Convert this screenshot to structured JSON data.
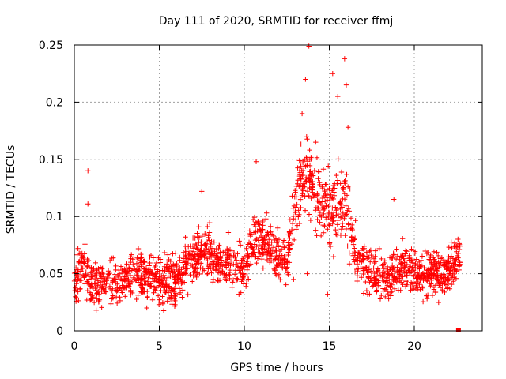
{
  "chart_data": {
    "type": "scatter",
    "title": "Day 111 of 2020, SRMTID for receiver ffmj",
    "xlabel": "GPS time / hours",
    "ylabel": "SRMTID / TECUs",
    "xlim": [
      0,
      24
    ],
    "ylim": [
      0,
      0.25
    ],
    "x_ticks": [
      0,
      5,
      10,
      15,
      20
    ],
    "x_tick_labels": [
      "0",
      "5",
      "10",
      "15",
      "20"
    ],
    "y_ticks": [
      0,
      0.05,
      0.1,
      0.15,
      0.2,
      0.25
    ],
    "y_tick_labels": [
      "0",
      "0.05",
      "0.1",
      "0.15",
      "0.2",
      "0.25"
    ],
    "grid": true,
    "grid_style": "dotted",
    "legend": "none",
    "marker": "plus",
    "color": "#ff0000",
    "trend": [
      [
        0.0,
        0.045
      ],
      [
        0.5,
        0.055
      ],
      [
        1.0,
        0.04
      ],
      [
        2.0,
        0.042
      ],
      [
        3.0,
        0.045
      ],
      [
        4.0,
        0.047
      ],
      [
        5.0,
        0.043
      ],
      [
        6.0,
        0.046
      ],
      [
        6.5,
        0.052
      ],
      [
        7.0,
        0.065
      ],
      [
        7.5,
        0.07
      ],
      [
        8.0,
        0.068
      ],
      [
        8.5,
        0.058
      ],
      [
        9.0,
        0.062
      ],
      [
        9.5,
        0.055
      ],
      [
        10.0,
        0.052
      ],
      [
        10.5,
        0.075
      ],
      [
        11.0,
        0.08
      ],
      [
        11.5,
        0.072
      ],
      [
        12.0,
        0.065
      ],
      [
        12.5,
        0.06
      ],
      [
        13.0,
        0.11
      ],
      [
        13.5,
        0.14
      ],
      [
        14.0,
        0.13
      ],
      [
        14.5,
        0.11
      ],
      [
        15.0,
        0.105
      ],
      [
        15.5,
        0.105
      ],
      [
        16.0,
        0.11
      ],
      [
        16.5,
        0.07
      ],
      [
        17.0,
        0.058
      ],
      [
        17.5,
        0.053
      ],
      [
        18.0,
        0.048
      ],
      [
        18.5,
        0.045
      ],
      [
        19.0,
        0.058
      ],
      [
        19.5,
        0.055
      ],
      [
        20.0,
        0.053
      ],
      [
        20.5,
        0.05
      ],
      [
        21.0,
        0.052
      ],
      [
        21.5,
        0.05
      ],
      [
        22.0,
        0.052
      ],
      [
        22.5,
        0.06
      ],
      [
        22.7,
        0.07
      ]
    ],
    "spread": 0.018,
    "x_range_points": [
      0.0,
      22.7
    ],
    "point_count": 1900,
    "outliers": [
      [
        0.8,
        0.14
      ],
      [
        0.8,
        0.111
      ],
      [
        7.5,
        0.122
      ],
      [
        10.7,
        0.148
      ],
      [
        13.4,
        0.19
      ],
      [
        13.6,
        0.22
      ],
      [
        13.8,
        0.249
      ],
      [
        14.2,
        0.165
      ],
      [
        15.2,
        0.225
      ],
      [
        15.5,
        0.205
      ],
      [
        15.9,
        0.238
      ],
      [
        16.0,
        0.215
      ],
      [
        16.1,
        0.178
      ],
      [
        18.8,
        0.115
      ],
      [
        12.9,
        0.045
      ],
      [
        14.9,
        0.032
      ],
      [
        13.7,
        0.05
      ]
    ],
    "marker_end": [
      22.6,
      0.0
    ]
  }
}
